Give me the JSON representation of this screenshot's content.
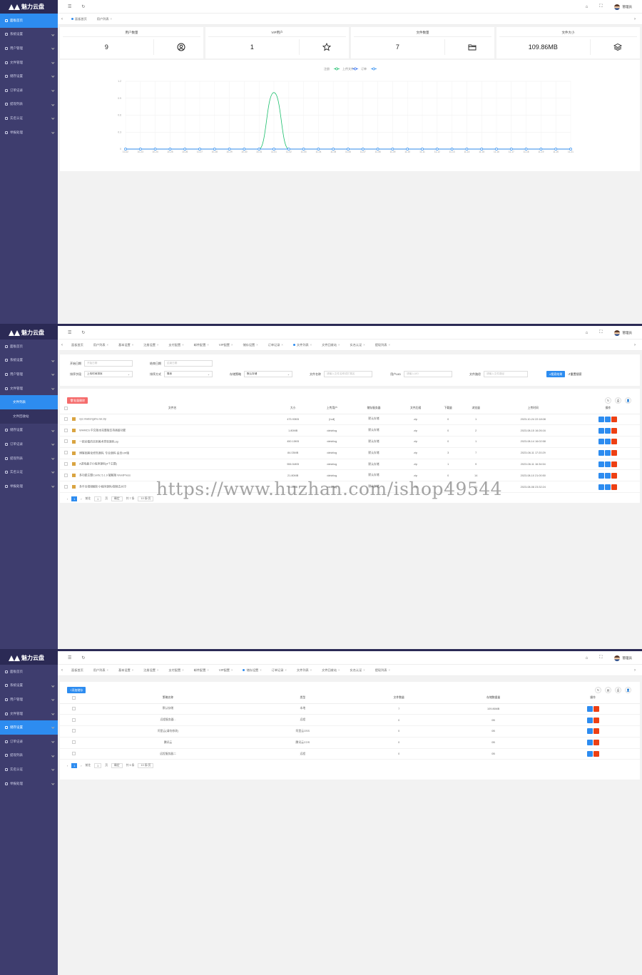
{
  "app": {
    "name": "魅力云盘",
    "admin": "管理员"
  },
  "sidebar1": [
    {
      "label": "面板首页",
      "active": true
    },
    {
      "label": "系统设置"
    },
    {
      "label": "用户管理"
    },
    {
      "label": "文件管理"
    },
    {
      "label": "储存设置"
    },
    {
      "label": "订单记录"
    },
    {
      "label": "提现列表"
    },
    {
      "label": "实名认证"
    },
    {
      "label": "举报处理"
    }
  ],
  "sidebar2": [
    {
      "label": "面板首页"
    },
    {
      "label": "系统设置"
    },
    {
      "label": "用户管理"
    },
    {
      "label": "文件管理"
    },
    {
      "label": "文件列表",
      "sub": true,
      "active": true
    },
    {
      "label": "文件回收站",
      "sub": true
    },
    {
      "label": "储存设置"
    },
    {
      "label": "订单记录"
    },
    {
      "label": "提现列表"
    },
    {
      "label": "实名认证"
    },
    {
      "label": "举报处理"
    }
  ],
  "sidebar3": [
    {
      "label": "面板首页"
    },
    {
      "label": "系统设置"
    },
    {
      "label": "用户管理"
    },
    {
      "label": "文件管理"
    },
    {
      "label": "储存设置",
      "active": true
    },
    {
      "label": "订单记录"
    },
    {
      "label": "提现列表"
    },
    {
      "label": "实名认证"
    },
    {
      "label": "举报处理"
    }
  ],
  "tabs1": [
    "面板首页",
    "用户列表"
  ],
  "tabs_full": [
    "面板首页",
    "用户列表",
    "基本设置",
    "注册设置",
    "支付配置",
    "邮件配置",
    "VIP配置",
    "储存设置",
    "订单记录",
    "文件列表",
    "文件回收站",
    "实名认证",
    "提现列表"
  ],
  "tabs2_active": 9,
  "tabs3_active": 7,
  "stats": [
    {
      "title": "用户数量",
      "value": "9",
      "icon": "user-circle-icon"
    },
    {
      "title": "VIP用户",
      "value": "1",
      "icon": "star-icon"
    },
    {
      "title": "文件数量",
      "value": "7",
      "icon": "folder-icon"
    },
    {
      "title": "文件大小",
      "value": "109.86MB",
      "icon": "layers-icon"
    }
  ],
  "chart_data": {
    "type": "line",
    "legend": [
      "注册",
      "上传文件",
      "订单"
    ],
    "colors": [
      "#19be6b",
      "#2d6cf0",
      "#2d8cf0"
    ],
    "x": [
      "10-22",
      "10-23",
      "10-24",
      "10-25",
      "10-26",
      "10-27",
      "10-28",
      "10-29",
      "10-30",
      "10-31",
      "11-01",
      "11-02",
      "11-03",
      "11-04",
      "11-05",
      "11-06",
      "11-07",
      "11-08",
      "11-09",
      "11-10",
      "11-11",
      "11-12",
      "11-13",
      "11-14",
      "11-15",
      "11-16",
      "11-17",
      "11-18",
      "11-19",
      "11-20",
      "11-21"
    ],
    "yticks": [
      "0",
      "0.3",
      "0.6",
      "0.9",
      "1.2"
    ],
    "ylim": [
      0,
      1.2
    ],
    "series": [
      {
        "name": "注册",
        "values": [
          0,
          0,
          0,
          0,
          0,
          0,
          0,
          0,
          0,
          0,
          1,
          0,
          0,
          0,
          0,
          0,
          0,
          0,
          0,
          0,
          0,
          0,
          0,
          0,
          0,
          0,
          0,
          0,
          0,
          0,
          0
        ]
      },
      {
        "name": "上传文件",
        "values": [
          0,
          0,
          0,
          0,
          0,
          0,
          0,
          0,
          0,
          0,
          0,
          0,
          0,
          0,
          0,
          0,
          0,
          0,
          0,
          0,
          0,
          0,
          0,
          0,
          0,
          0,
          0,
          0,
          0,
          0,
          0
        ]
      },
      {
        "name": "订单",
        "values": [
          0,
          0,
          0,
          0,
          0,
          0,
          0,
          0,
          0,
          0,
          0,
          0,
          0,
          0,
          0,
          0,
          0,
          0,
          0,
          0,
          0,
          0,
          0,
          0,
          0,
          0,
          0,
          0,
          0,
          0,
          0
        ]
      }
    ]
  },
  "filters": {
    "start_label": "开始日期",
    "start_ph": "开始日期",
    "end_label": "结束日期",
    "end_ph": "结束日期",
    "storage_label": "存储策略",
    "storage_val": "默认存储",
    "name_label": "文件名称",
    "name_ph": "请输入文件名称或扩展名",
    "uid_label": "用户UID",
    "uid_ph": "请输入UID",
    "path_label": "文件路径",
    "path_ph": "请输入文件路径",
    "sort_label": "排序字段",
    "sort_val": "上传时间排序",
    "order_label": "排序方式",
    "order_val": "降序",
    "search_btn": "搜索结果",
    "reset_btn": "重置搜索"
  },
  "delete_btn": "批量删除",
  "file_headers": [
    "文件名",
    "大小",
    "上传用户",
    "储存服务器",
    "文件后缀",
    "下载量",
    "浏览量",
    "上传时间",
    "操作"
  ],
  "files": [
    [
      "xyz.madongshu.rar.zip",
      "475.93KB",
      "[null]",
      "默认存储",
      "zip",
      "0",
      "1",
      "2023-10-24 22:18:08"
    ],
    [
      "WHMCS 中文版本完整版支持高级功能",
      "1.80MB",
      "dzlsblog",
      "默认存储",
      "zip",
      "0",
      "2",
      "2023-08-15 16:26:16"
    ],
    [
      "一款好看的实用美术类型源码.zip",
      "450.15KB",
      "dzlsblog",
      "默认存储",
      "zip",
      "0",
      "1",
      "2023-08-14 16:02:58"
    ],
    [
      "博客园美化修饰源码, 专业源码 会员VIP版",
      "84.03MB",
      "dzlsblog",
      "默认存储",
      "zip",
      "3",
      "7",
      "2023-08-11 17:20:29"
    ],
    [
      "A游戏盒子小程序源码(4个主题)",
      "556.54KB",
      "dzlsblog",
      "默认存储",
      "zip",
      "1",
      "9",
      "2023-08-11 16:34:54"
    ],
    [
      "多功能主题Corrtic 5.1.9 破解版 WordPress",
      "21.80MB",
      "dzlsblog",
      "默认存储",
      "zip",
      "0",
      "14",
      "2023-08-10 21:00:50"
    ],
    [
      "多平台视频解析小程序源码/视频去水印",
      "1.05MB",
      "dzlsblog",
      "默认存储",
      "zip",
      "0",
      "21",
      "2023-08-08 23:32:24"
    ]
  ],
  "pager1": {
    "current": "1",
    "goto": "前往",
    "page": "1",
    "unit": "页",
    "confirm": "确定",
    "total": "共 7 条",
    "size": "10 条/页"
  },
  "add_btn": "添加储存",
  "storage_headers": [
    "策略名称",
    "类型",
    "文件数量",
    "存储数据量",
    "操作"
  ],
  "storage": [
    [
      "默认存储",
      "本地",
      "7",
      "109.86MB"
    ],
    [
      "远程服务器...",
      "远程",
      "0",
      "0B"
    ],
    [
      "阿里云(请勿修改)",
      "阿里云OSS",
      "0",
      "0B"
    ],
    [
      "腾讯云",
      "腾讯云COS",
      "0",
      "0B"
    ],
    [
      "远程服务器二",
      "远程",
      "0",
      "0B"
    ]
  ],
  "pager2": {
    "current": "1",
    "goto": "前往",
    "page": "1",
    "unit": "页",
    "confirm": "确定",
    "total": "共 5 条",
    "size": "10 条/页"
  },
  "watermark": "https://www.huzhan.com/ishop49544"
}
